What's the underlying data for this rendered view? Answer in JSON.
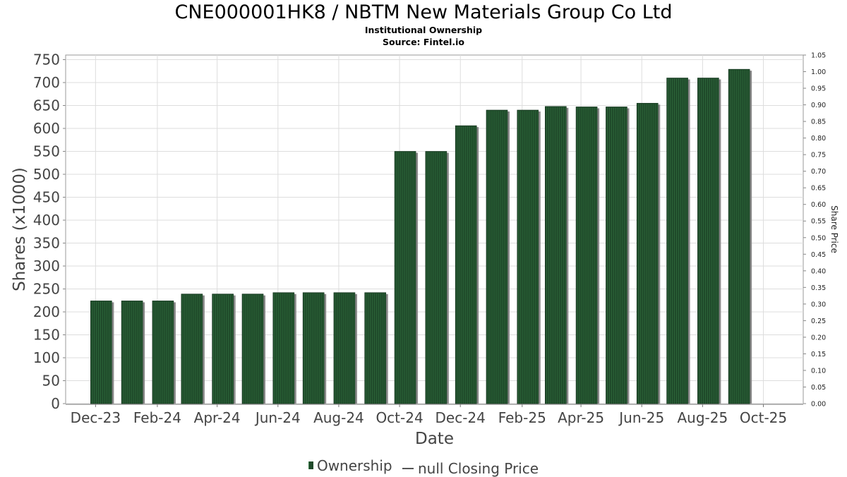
{
  "chart_data": {
    "type": "bar",
    "title": "CNE000001HK8 / NBTM New Materials Group Co Ltd",
    "subtitle_1": "Institutional Ownership",
    "subtitle_2": "Source: Fintel.io",
    "xlabel": "Date",
    "ylabel": "Shares (x1000)",
    "y2label": "Share Price",
    "ylim": [
      0,
      760
    ],
    "y_ticks": [
      0,
      50,
      100,
      150,
      200,
      250,
      300,
      350,
      400,
      450,
      500,
      550,
      600,
      650,
      700,
      750
    ],
    "y2lim": [
      0,
      1.05
    ],
    "y2_ticks": [
      "0.00",
      "0.05",
      "0.10",
      "0.15",
      "0.20",
      "0.25",
      "0.30",
      "0.35",
      "0.40",
      "0.45",
      "0.50",
      "0.55",
      "0.60",
      "0.65",
      "0.70",
      "0.75",
      "0.80",
      "0.85",
      "0.90",
      "0.95",
      "1.00",
      "1.05"
    ],
    "x_ticks": [
      "Dec-23",
      "Feb-24",
      "Apr-24",
      "Jun-24",
      "Aug-24",
      "Oct-24",
      "Dec-24",
      "Feb-25",
      "Apr-25",
      "Jun-25",
      "Aug-25",
      "Oct-25"
    ],
    "grid": true,
    "legend_position": "bottom",
    "series": [
      {
        "name": "Ownership",
        "color": "#1f4a2a",
        "dates": [
          "2023-12-01",
          "2024-01-01",
          "2024-02-01",
          "2024-03-01",
          "2024-04-01",
          "2024-05-01",
          "2024-06-01",
          "2024-07-01",
          "2024-08-01",
          "2024-09-01",
          "2024-10-01",
          "2024-11-01",
          "2024-12-01",
          "2025-01-01",
          "2025-02-01",
          "2025-03-01",
          "2025-04-01",
          "2025-05-01",
          "2025-06-01",
          "2025-07-01",
          "2025-08-01",
          "2025-09-01"
        ],
        "values": [
          224,
          224,
          224,
          239,
          239,
          239,
          242,
          242,
          242,
          242,
          550,
          550,
          606,
          640,
          640,
          648,
          647,
          647,
          655,
          710,
          710,
          729
        ]
      },
      {
        "name": "null Closing Price",
        "color": "#555555",
        "values": []
      }
    ]
  }
}
